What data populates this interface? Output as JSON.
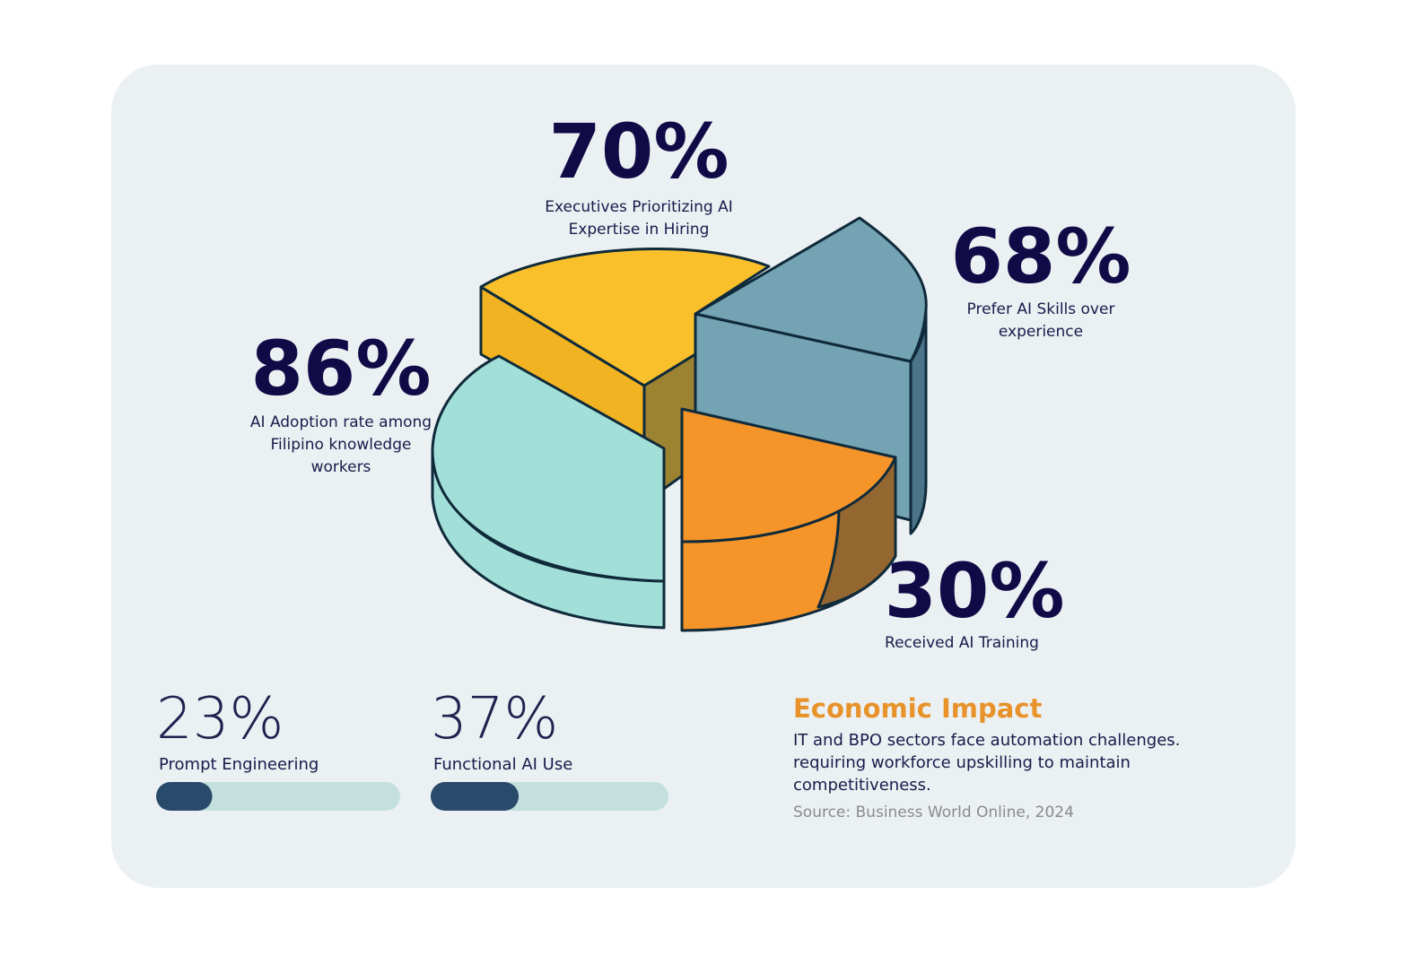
{
  "stats": [
    {
      "value_label": "70%",
      "label_lines": [
        "Executives Prioritizing AI",
        "Expertise in Hiring"
      ]
    },
    {
      "value_label": "68%",
      "label_lines": [
        "Prefer AI Skills over",
        "experience"
      ]
    },
    {
      "value_label": "86%",
      "label_lines": [
        "AI Adoption rate among",
        "Filipino knowledge",
        "workers"
      ]
    },
    {
      "value_label": "30%",
      "label_lines": [
        "Received AI Training"
      ]
    }
  ],
  "skills": [
    {
      "value": 23,
      "value_label": "23%",
      "label": "Prompt Engineering"
    },
    {
      "value": 37,
      "value_label": "37%",
      "label": "Functional AI Use"
    }
  ],
  "impact": {
    "title": "Economic Impact",
    "lines": [
      "IT and BPO sectors face automation challenges.",
      "requiring workforce upskilling to maintain",
      "competitiveness."
    ],
    "source": "Source: Business World Online, 2024"
  }
}
